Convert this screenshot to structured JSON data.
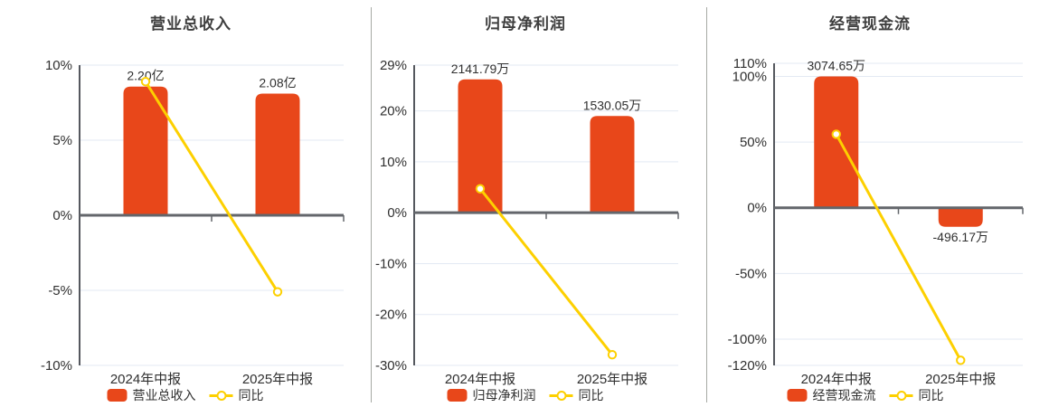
{
  "colors": {
    "bar": "#e8471a",
    "line": "#fdd000",
    "marker_fill": "#ffffff",
    "grid": "#e3e9f3",
    "y_axis": "#55585e",
    "x_axis": "#63666b",
    "separator": "#a7a9a4",
    "title_text": "#3f3f3f",
    "label_text": "#303030"
  },
  "chart_data": [
    {
      "type": "bar",
      "title": "营业总收入",
      "categories": [
        "2024年中报",
        "2025年中报"
      ],
      "bar_series": {
        "name": "营业总收入",
        "value_labels": [
          "2.20亿",
          "2.08亿"
        ],
        "bar_top_pct": [
          8.57,
          8.1
        ]
      },
      "line_series": {
        "name": "同比",
        "values_pct": [
          8.9,
          -5.1
        ]
      },
      "y_ticks": [
        "10%",
        "5%",
        "0%",
        "-5%",
        "-10%"
      ],
      "y_tick_values": [
        10,
        5,
        0,
        -5,
        -10
      ],
      "y_range": [
        -10,
        10
      ],
      "grid": true,
      "legend_position": "bottom"
    },
    {
      "type": "bar",
      "title": "归母净利润",
      "categories": [
        "2024年中报",
        "2025年中报"
      ],
      "bar_series": {
        "name": "归母净利润",
        "value_labels": [
          "2141.79万",
          "1530.05万"
        ],
        "bar_top_pct": [
          26.2,
          19.0
        ]
      },
      "line_series": {
        "name": "同比",
        "values_pct": [
          4.7,
          -27.9
        ]
      },
      "y_ticks": [
        "29%",
        "20%",
        "10%",
        "0%",
        "-10%",
        "-20%",
        "-30%"
      ],
      "y_tick_values": [
        29,
        20,
        10,
        0,
        -10,
        -20,
        -30
      ],
      "y_range": [
        -30,
        29
      ],
      "grid": true,
      "legend_position": "bottom"
    },
    {
      "type": "bar",
      "title": "经营现金流",
      "categories": [
        "2024年中报",
        "2025年中报"
      ],
      "bar_series": {
        "name": "经营现金流",
        "value_labels": [
          "3074.65万",
          "-496.17万"
        ],
        "bar_top_pct": [
          100,
          -14.5
        ]
      },
      "line_series": {
        "name": "同比",
        "values_pct": [
          56,
          -116.1
        ]
      },
      "y_ticks": [
        "110%",
        "100%",
        "50%",
        "0%",
        "-50%",
        "-100%",
        "-120%"
      ],
      "y_tick_values": [
        110,
        100,
        50,
        0,
        -50,
        -100,
        -120
      ],
      "y_range": [
        -120,
        110
      ],
      "grid": true,
      "legend_position": "bottom"
    }
  ]
}
